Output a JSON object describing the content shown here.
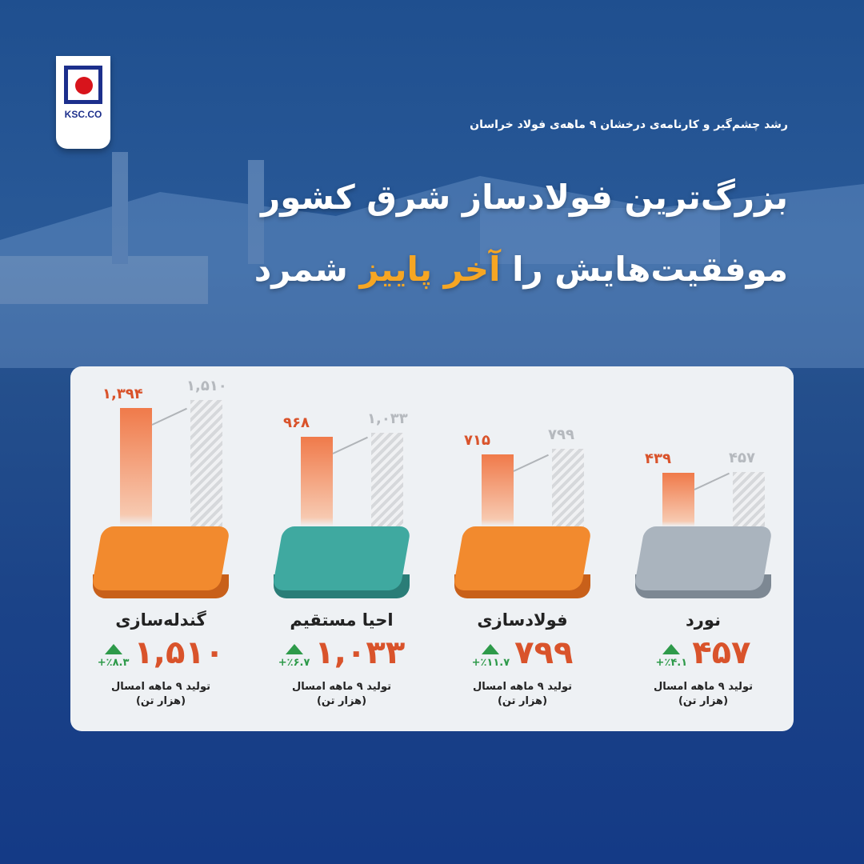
{
  "logo": {
    "text": "KSC.CO"
  },
  "header": {
    "subtitle": "رشد چشم‌گیر و کارنامه‌ی درخشان ۹ ماهه‌ی فولاد خراسان",
    "title_line1": "بزرگ‌ترین فولادساز شرق کشور",
    "title_line2_a": "موفقیت‌هایش را ",
    "title_line2_highlight": "آخر پاییز",
    "title_line2_b": " شمرد"
  },
  "colors": {
    "accent": "#f6a623",
    "value": "#d9532b",
    "growth": "#2e9a4a",
    "background": "#1b4388"
  },
  "columns": [
    {
      "name": "گندله‌سازی",
      "prev_label": "۱,۳۹۴",
      "cur_label": "۱,۵۱۰",
      "value": "۱,۵۱۰",
      "growth": "+٪۸.۳",
      "desc1": "تولید ۹ ماهه امسال",
      "desc2": "(هزار تن)",
      "platform_color": "#f28a2e",
      "platform_side": "#c8601a"
    },
    {
      "name": "احیا مستقیم",
      "prev_label": "۹۶۸",
      "cur_label": "۱,۰۳۳",
      "value": "۱,۰۳۳",
      "growth": "+٪۶.۷",
      "desc1": "تولید ۹ ماهه امسال",
      "desc2": "(هزار تن)",
      "platform_color": "#3fa9a0",
      "platform_side": "#2a7d77"
    },
    {
      "name": "فولادسازی",
      "prev_label": "۷۱۵",
      "cur_label": "۷۹۹",
      "value": "۷۹۹",
      "growth": "+٪۱۱.۷",
      "desc1": "تولید ۹ ماهه امسال",
      "desc2": "(هزار تن)",
      "platform_color": "#f28a2e",
      "platform_side": "#c8601a"
    },
    {
      "name": "نورد",
      "prev_label": "۴۳۹",
      "cur_label": "۴۵۷",
      "value": "۴۵۷",
      "growth": "+٪۴.۱",
      "desc1": "تولید ۹ ماهه امسال",
      "desc2": "(هزار تن)",
      "platform_color": "#aab4be",
      "platform_side": "#7d8893"
    }
  ],
  "chart_data": {
    "type": "bar",
    "categories": [
      "گندله‌سازی",
      "احیا مستقیم",
      "فولادسازی",
      "نورد"
    ],
    "series": [
      {
        "values": [
          1394,
          968,
          715,
          439
        ],
        "color": "#f07a4a"
      },
      {
        "values": [
          1510,
          1033,
          799,
          457
        ],
        "color": "#d6d8db"
      }
    ],
    "growth_percent": [
      8.3,
      6.7,
      11.7,
      4.1
    ],
    "unit": "(هزار تن)"
  }
}
